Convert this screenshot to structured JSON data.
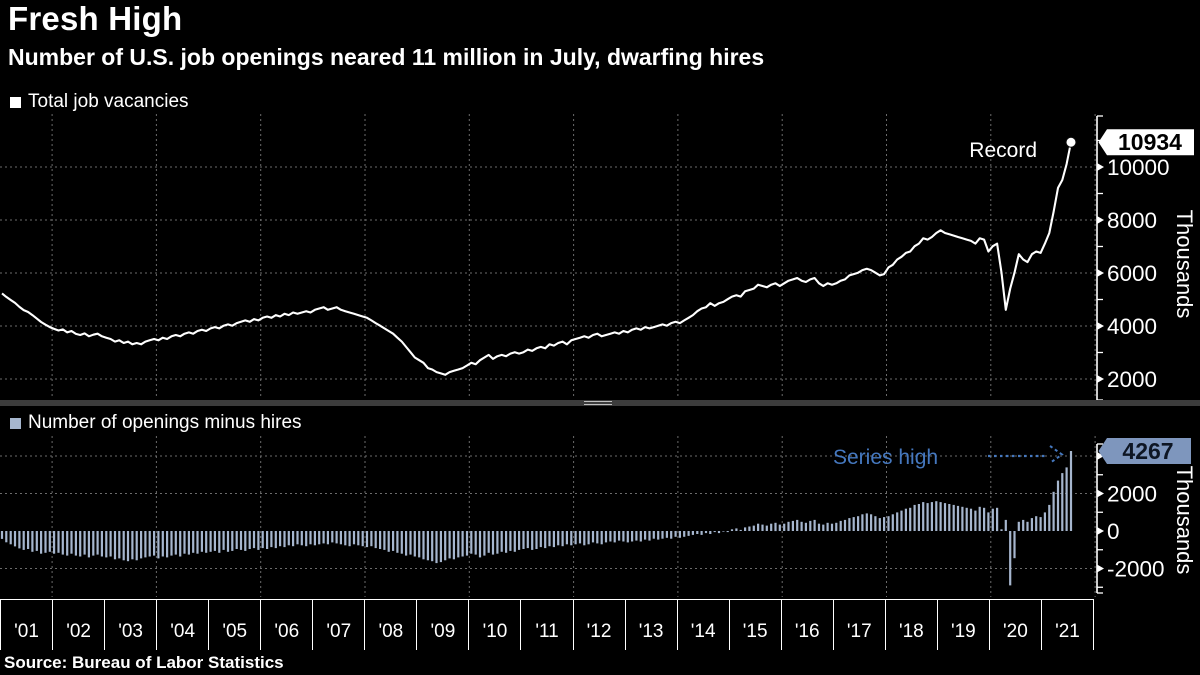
{
  "header": {
    "title": "Fresh High",
    "subtitle": "Number of U.S. job openings neared 11 million in July, dwarfing hires"
  },
  "source_note": "Source: Bureau of Labor Statistics",
  "colors": {
    "background": "#000000",
    "line": "#ffffff",
    "bar": "#a6b6ce",
    "legend_bottom_swatch": "#8 da4c6",
    "grid": "#6b6b6b",
    "axis": "#ffffff",
    "flag_top_bg": "#ffffff",
    "flag_top_text": "#000000",
    "flag_bottom_bg": "#7e96bd",
    "flag_bottom_text": "#0e1624",
    "annotation_blue": "#4578bf"
  },
  "panel_top": {
    "legend_label": "Total job vacancies",
    "annotation": "Record",
    "value_flag": "10934",
    "axis_title": "Thousands",
    "tick_labels": [
      10000,
      8000,
      6000,
      4000,
      2000
    ]
  },
  "panel_bottom": {
    "legend_label": "Number of openings minus hires",
    "annotation": "Series high",
    "value_flag": "4267",
    "axis_title": "Thousands",
    "tick_labels": [
      2000,
      0,
      -2000
    ]
  },
  "x_axis": {
    "year_labels": [
      "'01",
      "'02",
      "'03",
      "'04",
      "'05",
      "'06",
      "'07",
      "'08",
      "'09",
      "'10",
      "'11",
      "'12",
      "'13",
      "'14",
      "'15",
      "'16",
      "'17",
      "'18",
      "'19",
      "'20",
      "'21"
    ]
  },
  "chart_data": [
    {
      "type": "line",
      "name": "Total job vacancies",
      "unit": "Thousands",
      "frequency": "monthly",
      "x_start": "2001-01",
      "x_end": "2021-07",
      "ylim": [
        1600,
        11600
      ],
      "yticks": [
        2000,
        4000,
        6000,
        8000,
        10000
      ],
      "record_value": 10934,
      "values": [
        5230,
        5100,
        4980,
        4870,
        4720,
        4600,
        4530,
        4410,
        4280,
        4150,
        4050,
        3960,
        3890,
        3830,
        3870,
        3760,
        3810,
        3700,
        3660,
        3720,
        3610,
        3670,
        3710,
        3610,
        3560,
        3510,
        3410,
        3460,
        3360,
        3410,
        3310,
        3360,
        3310,
        3410,
        3460,
        3510,
        3460,
        3560,
        3510,
        3610,
        3660,
        3610,
        3710,
        3760,
        3710,
        3810,
        3860,
        3810,
        3910,
        3960,
        3910,
        4010,
        4060,
        4010,
        4110,
        4160,
        4210,
        4160,
        4260,
        4210,
        4310,
        4360,
        4310,
        4410,
        4360,
        4460,
        4410,
        4510,
        4460,
        4510,
        4560,
        4510,
        4610,
        4660,
        4710,
        4610,
        4660,
        4710,
        4610,
        4560,
        4510,
        4460,
        4410,
        4360,
        4310,
        4210,
        4110,
        4010,
        3910,
        3810,
        3710,
        3560,
        3410,
        3210,
        3010,
        2810,
        2710,
        2610,
        2410,
        2360,
        2260,
        2210,
        2160,
        2260,
        2310,
        2360,
        2410,
        2510,
        2610,
        2560,
        2710,
        2810,
        2910,
        2760,
        2860,
        2910,
        2860,
        2960,
        3010,
        2960,
        3010,
        3110,
        3060,
        3160,
        3210,
        3160,
        3310,
        3260,
        3360,
        3410,
        3310,
        3460,
        3510,
        3560,
        3610,
        3560,
        3660,
        3710,
        3610,
        3660,
        3710,
        3760,
        3710,
        3810,
        3760,
        3860,
        3910,
        3860,
        3960,
        3910,
        3960,
        4010,
        4060,
        4010,
        4110,
        4160,
        4110,
        4210,
        4310,
        4410,
        4560,
        4660,
        4710,
        4860,
        4760,
        4860,
        4910,
        5010,
        5110,
        5160,
        5110,
        5310,
        5360,
        5410,
        5560,
        5510,
        5460,
        5560,
        5610,
        5510,
        5610,
        5710,
        5760,
        5810,
        5710,
        5660,
        5760,
        5810,
        5610,
        5510,
        5610,
        5560,
        5610,
        5710,
        5760,
        5910,
        5960,
        6010,
        6110,
        6160,
        6110,
        6010,
        5910,
        5960,
        6210,
        6310,
        6510,
        6610,
        6760,
        6810,
        7010,
        7110,
        7310,
        7260,
        7360,
        7510,
        7610,
        7510,
        7460,
        7410,
        7360,
        7310,
        7260,
        7210,
        7110,
        7310,
        7260,
        6810,
        7010,
        7110,
        6010,
        4610,
        5410,
        6010,
        6710,
        6510,
        6410,
        6710,
        6810,
        6760,
        7110,
        7510,
        8310,
        9210,
        9510,
        10110,
        10934
      ]
    },
    {
      "type": "bar",
      "name": "Number of openings minus hires",
      "unit": "Thousands",
      "frequency": "monthly",
      "x_start": "2001-01",
      "x_end": "2021-07",
      "ylim": [
        -3600,
        4800
      ],
      "yticks": [
        -2000,
        0,
        2000,
        4000
      ],
      "series_high": 4267,
      "values": [
        -420,
        -600,
        -710,
        -820,
        -930,
        -1010,
        -960,
        -1110,
        -1060,
        -1210,
        -1160,
        -1110,
        -1210,
        -1160,
        -1260,
        -1310,
        -1210,
        -1310,
        -1360,
        -1260,
        -1410,
        -1310,
        -1260,
        -1360,
        -1410,
        -1360,
        -1510,
        -1460,
        -1560,
        -1610,
        -1510,
        -1560,
        -1460,
        -1410,
        -1360,
        -1310,
        -1460,
        -1360,
        -1410,
        -1310,
        -1260,
        -1360,
        -1210,
        -1260,
        -1160,
        -1210,
        -1110,
        -1160,
        -1110,
        -1060,
        -1160,
        -1010,
        -1110,
        -1060,
        -960,
        -1010,
        -1060,
        -960,
        -910,
        -1010,
        -910,
        -960,
        -860,
        -910,
        -810,
        -860,
        -760,
        -810,
        -710,
        -760,
        -810,
        -710,
        -760,
        -710,
        -660,
        -710,
        -610,
        -660,
        -710,
        -760,
        -810,
        -710,
        -760,
        -810,
        -860,
        -810,
        -910,
        -960,
        -1010,
        -1110,
        -1060,
        -1160,
        -1210,
        -1310,
        -1260,
        -1360,
        -1410,
        -1510,
        -1560,
        -1610,
        -1710,
        -1660,
        -1560,
        -1460,
        -1510,
        -1410,
        -1360,
        -1310,
        -1210,
        -1260,
        -1410,
        -1310,
        -1160,
        -1260,
        -1210,
        -1110,
        -1160,
        -1060,
        -1110,
        -1010,
        -960,
        -910,
        -1010,
        -960,
        -860,
        -910,
        -810,
        -860,
        -760,
        -810,
        -710,
        -760,
        -710,
        -660,
        -760,
        -710,
        -610,
        -660,
        -710,
        -610,
        -560,
        -610,
        -510,
        -560,
        -610,
        -560,
        -510,
        -560,
        -460,
        -510,
        -410,
        -460,
        -410,
        -360,
        -410,
        -310,
        -360,
        -310,
        -260,
        -210,
        -160,
        -210,
        -110,
        -160,
        -60,
        -110,
        -20,
        -60,
        90,
        140,
        60,
        190,
        240,
        290,
        390,
        340,
        290,
        390,
        440,
        340,
        390,
        490,
        540,
        590,
        490,
        440,
        540,
        590,
        390,
        340,
        440,
        390,
        440,
        540,
        590,
        690,
        740,
        790,
        890,
        940,
        890,
        790,
        690,
        740,
        790,
        890,
        990,
        1090,
        1190,
        1240,
        1390,
        1440,
        1540,
        1490,
        1540,
        1590,
        1540,
        1490,
        1440,
        1390,
        1340,
        1290,
        1240,
        1190,
        1090,
        1290,
        1240,
        990,
        1190,
        1240,
        90,
        590,
        -2900,
        -1450,
        490,
        590,
        490,
        690,
        790,
        740,
        990,
        1390,
        2090,
        2690,
        3090,
        3390,
        4267
      ]
    }
  ]
}
